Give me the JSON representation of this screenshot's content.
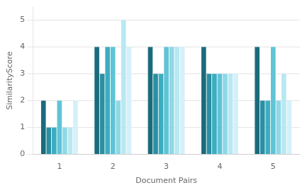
{
  "chart_data": {
    "type": "bar",
    "xlabel": "Document Pairs",
    "ylabel": "SimilarityScore",
    "categories": [
      "1",
      "2",
      "3",
      "4",
      "5"
    ],
    "series": [
      {
        "color": "#1a6b7c",
        "values": [
          2,
          4,
          4,
          4,
          4
        ]
      },
      {
        "color": "#2a8fa3",
        "values": [
          1,
          3,
          3,
          3,
          2
        ]
      },
      {
        "color": "#3badc0",
        "values": [
          1,
          4,
          3,
          3,
          2
        ]
      },
      {
        "color": "#5ec4d6",
        "values": [
          2,
          4,
          4,
          3,
          4
        ]
      },
      {
        "color": "#8fd8e6",
        "values": [
          1,
          2,
          4,
          3,
          2
        ]
      },
      {
        "color": "#b8e8f2",
        "values": [
          1,
          5,
          4,
          3,
          3
        ]
      },
      {
        "color": "#d5f0f8",
        "values": [
          2,
          4,
          4,
          3,
          2
        ]
      }
    ],
    "ylim": [
      0,
      5.5
    ],
    "yticks": [
      0,
      1,
      2,
      3,
      4,
      5
    ],
    "grid": true
  }
}
